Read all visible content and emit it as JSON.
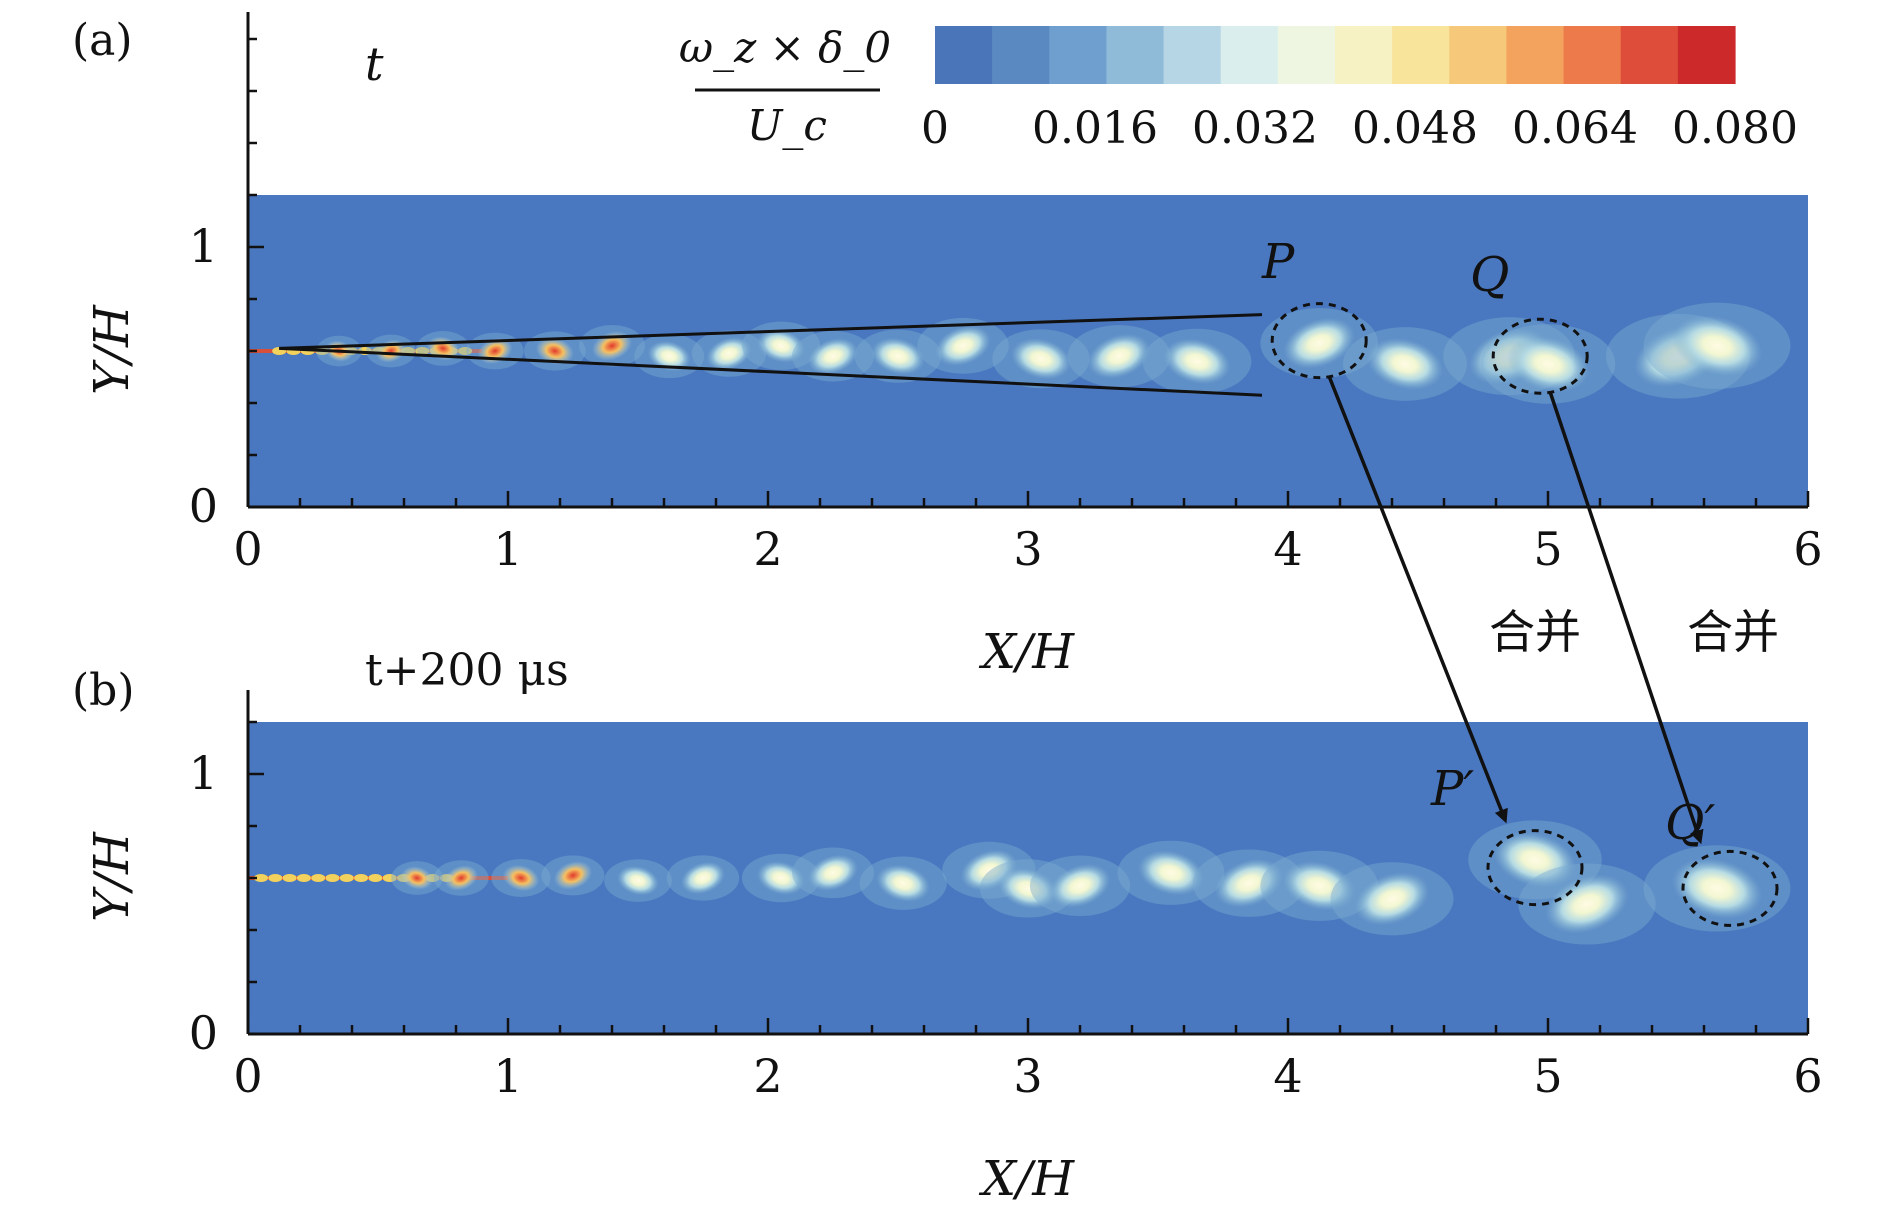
{
  "chart_data": [
    {
      "type": "heatmap",
      "panel_label": "(a)",
      "time_label": "t",
      "xlabel": "X/H",
      "ylabel": "Y/H",
      "xlim": [
        0,
        6
      ],
      "ylim": [
        0,
        1.2
      ],
      "xticks": [
        "0",
        "1",
        "2",
        "3",
        "4",
        "5",
        "6"
      ],
      "yticks": [
        "0",
        "1"
      ],
      "colorbar": {
        "label_numerator": "ω_z × δ_0",
        "label_denominator": "U_c",
        "ticks": [
          "0",
          "0.016",
          "0.032",
          "0.048",
          "0.064",
          "0.080"
        ],
        "range": [
          0,
          0.08
        ],
        "colors": [
          "#4a75b8",
          "#5a89c2",
          "#6f9fce",
          "#8fbbd9",
          "#b6d6e6",
          "#daeeed",
          "#eef6e2",
          "#f6f2c4",
          "#f8e49a",
          "#f6c879",
          "#f3a35e",
          "#ec7a4a",
          "#dd4d3a",
          "#cc2a2a"
        ]
      },
      "background_color": "#4a78c0",
      "vortices": [
        {
          "x": 0.35,
          "y": 0.6
        },
        {
          "x": 0.55,
          "y": 0.6
        },
        {
          "x": 0.75,
          "y": 0.61
        },
        {
          "x": 0.95,
          "y": 0.6
        },
        {
          "x": 1.18,
          "y": 0.6
        },
        {
          "x": 1.4,
          "y": 0.62
        },
        {
          "x": 1.62,
          "y": 0.58
        },
        {
          "x": 1.85,
          "y": 0.59
        },
        {
          "x": 2.05,
          "y": 0.62
        },
        {
          "x": 2.25,
          "y": 0.58
        },
        {
          "x": 2.5,
          "y": 0.58
        },
        {
          "x": 2.75,
          "y": 0.62
        },
        {
          "x": 3.05,
          "y": 0.57
        },
        {
          "x": 3.35,
          "y": 0.58
        },
        {
          "x": 3.65,
          "y": 0.56
        },
        {
          "x": 4.12,
          "y": 0.63
        },
        {
          "x": 4.45,
          "y": 0.55
        },
        {
          "x": 4.85,
          "y": 0.58
        },
        {
          "x": 5.0,
          "y": 0.55
        },
        {
          "x": 5.5,
          "y": 0.58
        },
        {
          "x": 5.65,
          "y": 0.62
        }
      ],
      "annotations": [
        {
          "label": "P",
          "x": 3.9,
          "y": 0.88
        },
        {
          "label": "Q",
          "x": 4.7,
          "y": 0.83
        }
      ],
      "highlights": [
        {
          "name": "P",
          "x": 4.12,
          "y": 0.64
        },
        {
          "name": "Q",
          "x": 4.97,
          "y": 0.58
        }
      ],
      "growth_lines": [
        {
          "x": [
            0.12,
            3.9
          ],
          "y": [
            0.61,
            0.74
          ]
        },
        {
          "x": [
            0.12,
            3.9
          ],
          "y": [
            0.61,
            0.43
          ]
        }
      ],
      "merge_labels": [
        "合并",
        "合并"
      ]
    },
    {
      "type": "heatmap",
      "panel_label": "(b)",
      "time_label": "t+200 μs",
      "xlabel": "X/H",
      "ylabel": "Y/H",
      "xlim": [
        0,
        6
      ],
      "ylim": [
        0,
        1.2
      ],
      "xticks": [
        "0",
        "1",
        "2",
        "3",
        "4",
        "5",
        "6"
      ],
      "yticks": [
        "0",
        "1"
      ],
      "background_color": "#4a78c0",
      "vortices": [
        {
          "x": 0.65,
          "y": 0.6
        },
        {
          "x": 0.82,
          "y": 0.6
        },
        {
          "x": 1.05,
          "y": 0.6
        },
        {
          "x": 1.25,
          "y": 0.61
        },
        {
          "x": 1.5,
          "y": 0.59
        },
        {
          "x": 1.75,
          "y": 0.6
        },
        {
          "x": 2.05,
          "y": 0.6
        },
        {
          "x": 2.25,
          "y": 0.62
        },
        {
          "x": 2.52,
          "y": 0.58
        },
        {
          "x": 2.85,
          "y": 0.63
        },
        {
          "x": 3.0,
          "y": 0.56
        },
        {
          "x": 3.2,
          "y": 0.57
        },
        {
          "x": 3.55,
          "y": 0.62
        },
        {
          "x": 3.85,
          "y": 0.58
        },
        {
          "x": 4.12,
          "y": 0.57
        },
        {
          "x": 4.4,
          "y": 0.52
        },
        {
          "x": 4.95,
          "y": 0.67
        },
        {
          "x": 5.15,
          "y": 0.5
        },
        {
          "x": 5.65,
          "y": 0.56
        }
      ],
      "annotations": [
        {
          "label": "P′",
          "x": 4.55,
          "y": 0.88
        },
        {
          "label": "Q′",
          "x": 5.45,
          "y": 0.75
        }
      ],
      "highlights": [
        {
          "name": "P′",
          "x": 4.95,
          "y": 0.64
        },
        {
          "name": "Q′",
          "x": 5.7,
          "y": 0.56
        }
      ]
    }
  ]
}
